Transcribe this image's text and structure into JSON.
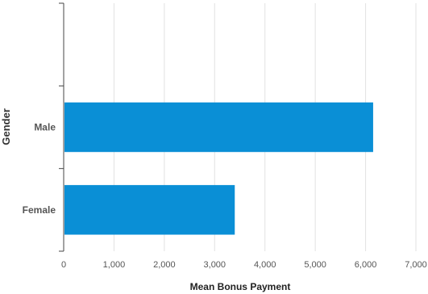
{
  "chart_data": {
    "type": "bar",
    "orientation": "horizontal",
    "categories": [
      "Male",
      "Female"
    ],
    "values": [
      6150,
      3400
    ],
    "xlabel": "Mean Bonus Payment",
    "ylabel": "Gender",
    "xlim": [
      0,
      7000
    ],
    "xticks": [
      "0",
      "1,000",
      "2,000",
      "3,000",
      "4,000",
      "5,000",
      "6,000",
      "7,000"
    ],
    "grid": "vertical",
    "bar_color": "#0a8fd6"
  }
}
